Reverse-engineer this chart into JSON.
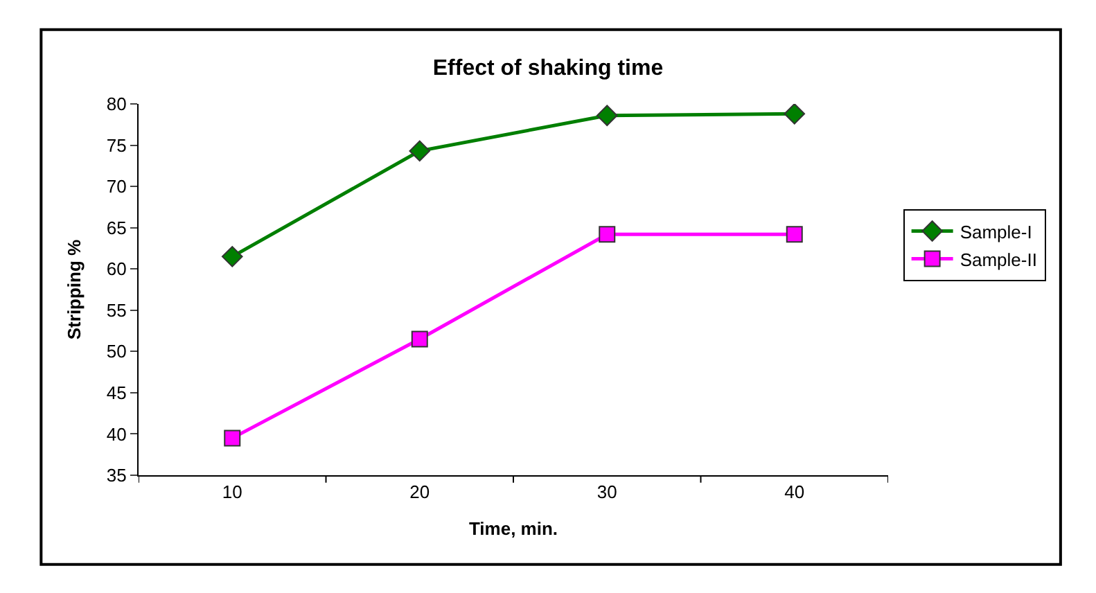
{
  "chart_data": {
    "type": "line",
    "title": "Effect of shaking time",
    "xlabel": "Time, min.",
    "ylabel": "Stripping %",
    "categories": [
      "10",
      "20",
      "30",
      "40"
    ],
    "series": [
      {
        "name": "Sample-I",
        "color": "#007f00",
        "values": [
          61.5,
          74.3,
          78.6,
          78.8
        ],
        "marker": "diamond"
      },
      {
        "name": "Sample-II",
        "color": "#ff00ff",
        "values": [
          39.5,
          51.5,
          64.2,
          64.2
        ],
        "marker": "square"
      }
    ],
    "ylim": [
      35,
      80
    ],
    "yticks": [
      35,
      40,
      45,
      50,
      55,
      60,
      65,
      70,
      75,
      80
    ],
    "legend": "right",
    "line_style": "solid"
  }
}
